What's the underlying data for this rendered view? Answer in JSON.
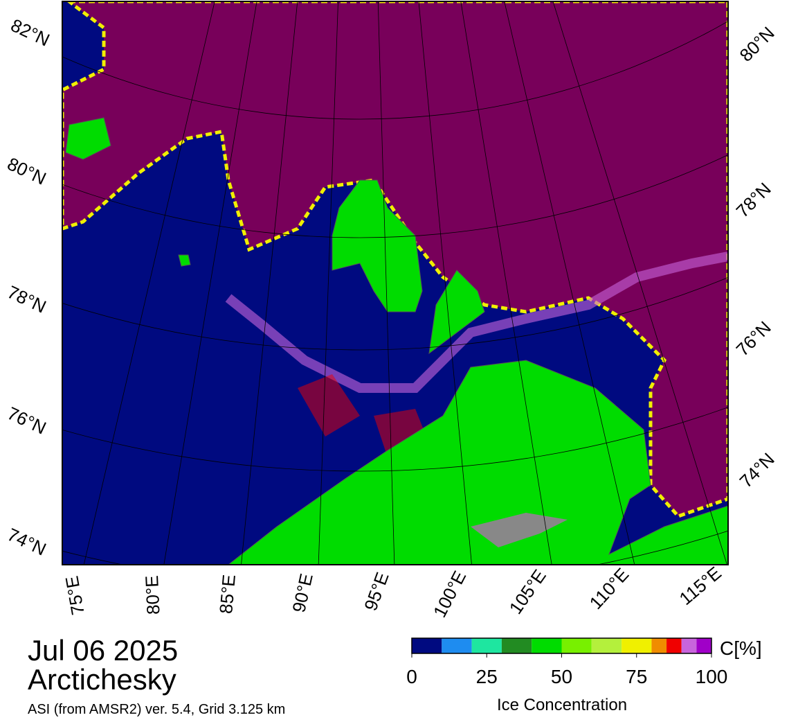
{
  "map": {
    "lat_labels_left": [
      "82°N",
      "80°N",
      "78°N",
      "76°N",
      "74°N"
    ],
    "lat_labels_right": [
      "80°N",
      "78°N",
      "76°N",
      "74°N"
    ],
    "lon_labels": [
      "75°E",
      "80°E",
      "85°E",
      "90°E",
      "95°E",
      "100°E",
      "105°E",
      "110°E",
      "115°E"
    ]
  },
  "caption": {
    "date": "Jul 06 2025",
    "region": "Arctichesky",
    "source": "ASI (from AMSR2) ver. 5.4,  Grid 3.125 km"
  },
  "colorbar": {
    "unit": "C[%]",
    "title": "Ice Concentration",
    "range": [
      0,
      100
    ],
    "ticks": [
      0,
      25,
      50,
      75,
      100
    ],
    "bins": [
      0,
      10,
      20,
      30,
      40,
      50,
      60,
      70,
      80,
      85,
      90,
      95,
      100
    ],
    "colors": [
      "#000a80",
      "#1e8cf0",
      "#1ee6a0",
      "#228b22",
      "#00dc00",
      "#78f000",
      "#b4f03c",
      "#f0f000",
      "#f08c00",
      "#f00000",
      "#c864dc",
      "#a000c8"
    ]
  }
}
